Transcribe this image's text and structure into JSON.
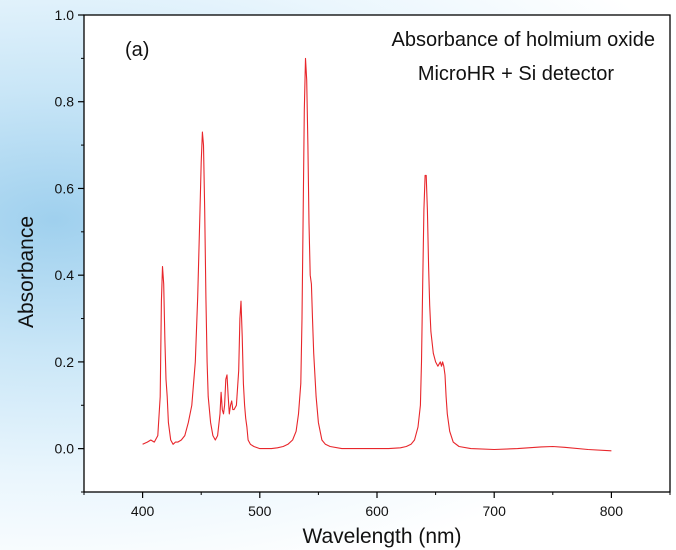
{
  "chart_data": {
    "type": "line",
    "title": "Absorbance of holmium oxide",
    "subtitle": "MicroHR + Si detector",
    "panel_label": "(a)",
    "xlabel": "Wavelength (nm)",
    "ylabel": "Absorbance",
    "xlim": [
      350,
      850
    ],
    "ylim": [
      -0.1,
      1.0
    ],
    "x_ticks": [
      400,
      500,
      600,
      700,
      800
    ],
    "x_tick_labels": [
      "400",
      "500",
      "600",
      "700",
      "800"
    ],
    "y_ticks": [
      0.0,
      0.2,
      0.4,
      0.6,
      0.8,
      1.0
    ],
    "y_tick_labels": [
      "0.0",
      "0.2",
      "0.4",
      "0.6",
      "0.8",
      "1.0"
    ],
    "grid": false,
    "legend": "none",
    "line_color": "#e8262b",
    "series": [
      {
        "x": [
          400,
          404,
          407,
          410,
          413,
          415,
          416,
          417,
          418,
          419,
          420,
          421,
          422,
          424,
          426,
          428,
          430,
          433,
          436,
          439,
          442,
          445,
          447,
          449,
          450,
          451,
          452,
          453,
          454,
          455,
          456,
          458,
          460,
          462,
          464,
          466,
          467,
          468,
          469,
          470,
          471,
          472,
          473,
          474,
          475,
          476,
          477,
          478,
          480,
          482,
          483,
          484,
          485,
          486,
          487,
          488,
          489,
          490,
          492,
          495,
          500,
          505,
          510,
          515,
          520,
          524,
          528,
          531,
          533,
          535,
          536,
          537,
          538,
          539,
          540,
          541,
          542,
          543,
          544,
          545,
          546,
          548,
          550,
          553,
          556,
          560,
          570,
          580,
          590,
          600,
          610,
          620,
          625,
          629,
          632,
          635,
          637,
          638,
          639,
          640,
          641,
          642,
          643,
          644,
          645,
          646,
          648,
          650,
          652,
          654,
          655,
          656,
          657,
          658,
          659,
          660,
          662,
          665,
          670,
          680,
          700,
          720,
          740,
          750,
          760,
          780,
          800
        ],
        "y": [
          0.01,
          0.015,
          0.02,
          0.015,
          0.03,
          0.12,
          0.34,
          0.42,
          0.38,
          0.25,
          0.16,
          0.12,
          0.06,
          0.02,
          0.01,
          0.015,
          0.015,
          0.02,
          0.03,
          0.06,
          0.1,
          0.2,
          0.35,
          0.55,
          0.66,
          0.73,
          0.7,
          0.55,
          0.35,
          0.2,
          0.12,
          0.06,
          0.03,
          0.02,
          0.03,
          0.08,
          0.13,
          0.09,
          0.08,
          0.1,
          0.16,
          0.17,
          0.12,
          0.08,
          0.1,
          0.11,
          0.09,
          0.09,
          0.1,
          0.18,
          0.3,
          0.34,
          0.26,
          0.15,
          0.1,
          0.07,
          0.05,
          0.02,
          0.01,
          0.005,
          0.0,
          0.0,
          0.0,
          0.002,
          0.005,
          0.01,
          0.02,
          0.04,
          0.08,
          0.15,
          0.3,
          0.55,
          0.78,
          0.9,
          0.85,
          0.7,
          0.52,
          0.4,
          0.38,
          0.3,
          0.22,
          0.12,
          0.06,
          0.02,
          0.01,
          0.005,
          0.0,
          0.0,
          0.0,
          0.0,
          0.0,
          0.002,
          0.005,
          0.01,
          0.02,
          0.05,
          0.1,
          0.2,
          0.38,
          0.55,
          0.63,
          0.63,
          0.55,
          0.42,
          0.33,
          0.27,
          0.22,
          0.2,
          0.19,
          0.2,
          0.19,
          0.2,
          0.19,
          0.17,
          0.12,
          0.08,
          0.04,
          0.015,
          0.005,
          0.0,
          -0.002,
          0.0,
          0.004,
          0.005,
          0.003,
          -0.002,
          -0.005
        ]
      }
    ]
  }
}
